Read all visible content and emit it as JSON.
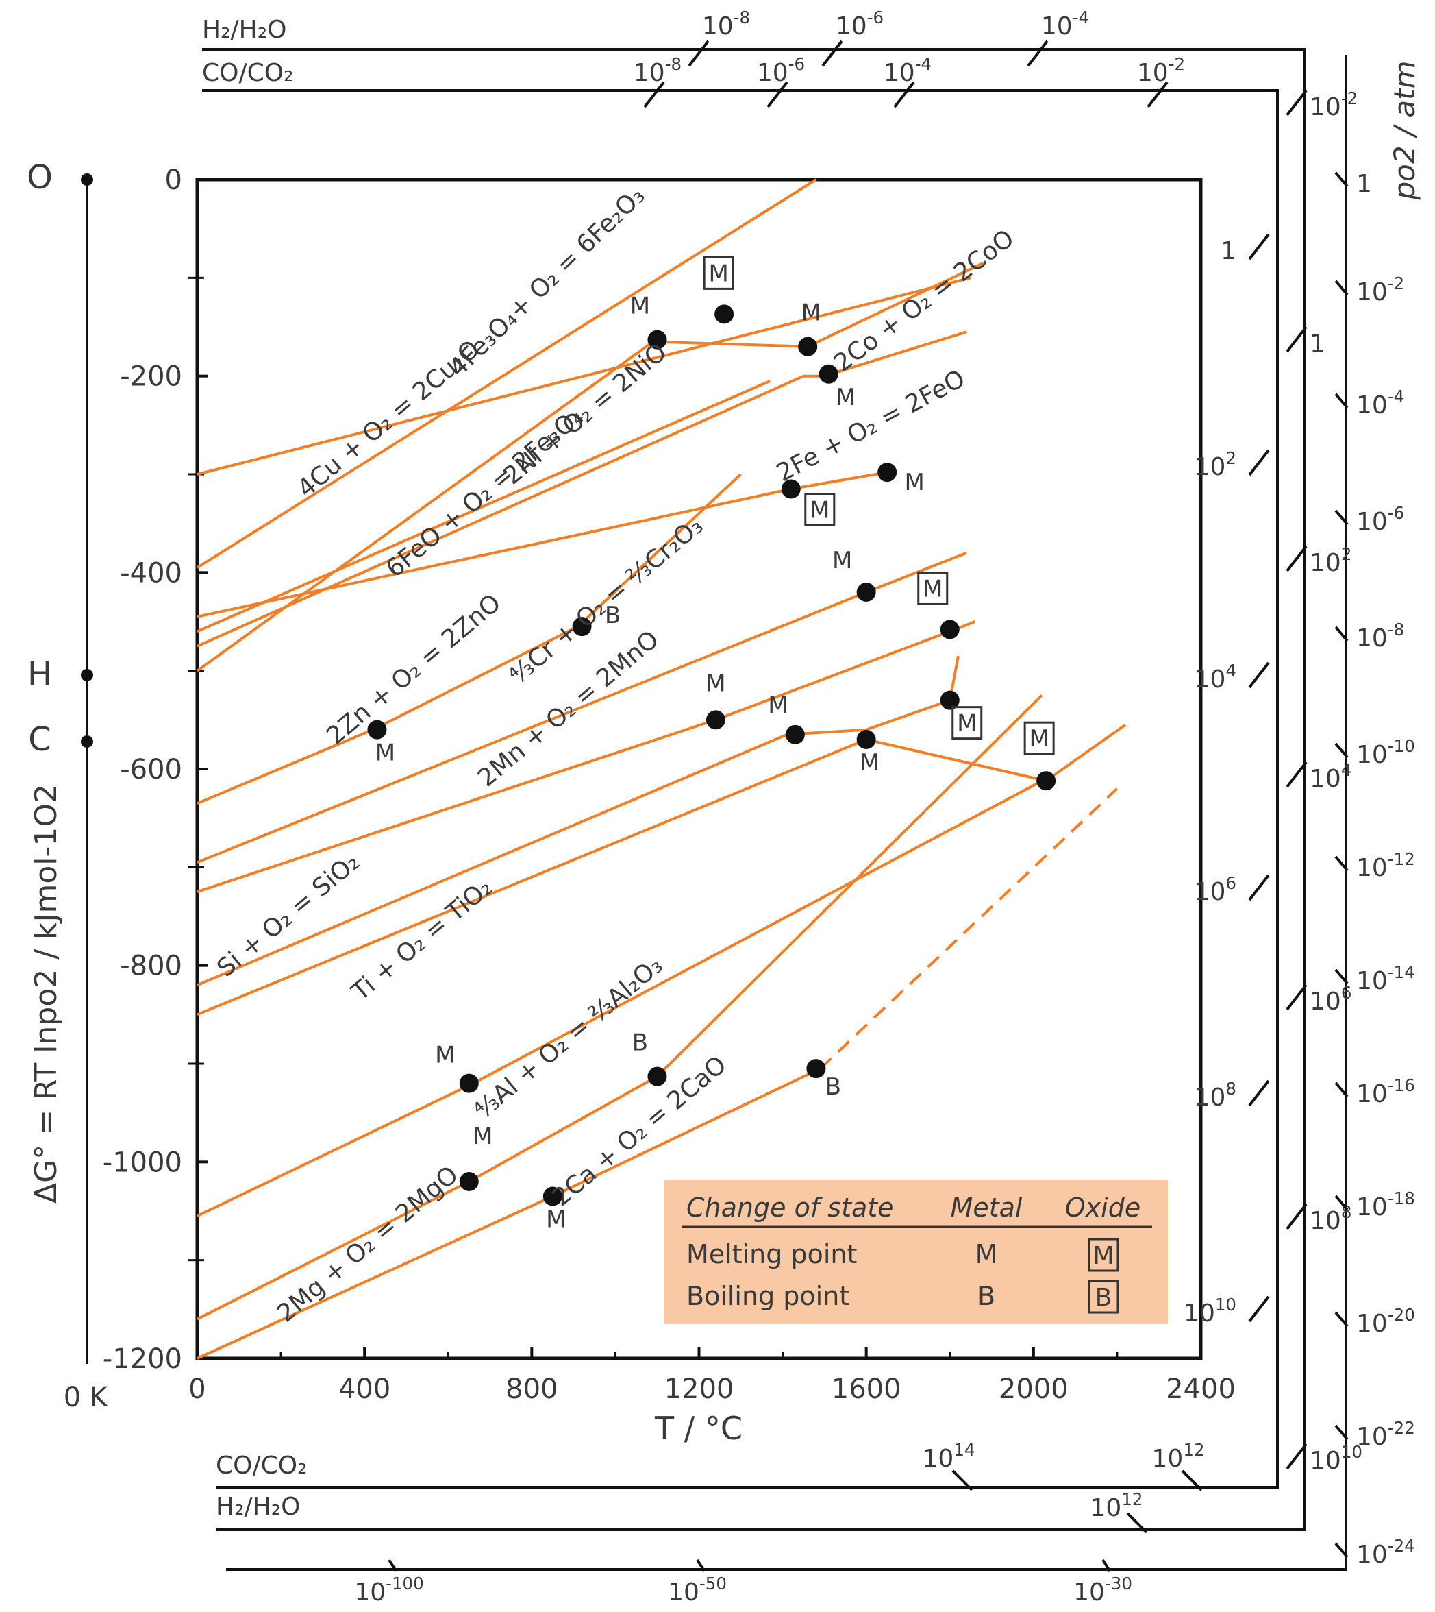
{
  "chart_data": {
    "type": "line",
    "title": "",
    "xlabel": "T / °C",
    "ylabel": "ΔG° = RT lnpo2 / kJmol-1O2",
    "xlim": [
      0,
      2400
    ],
    "ylim": [
      -1200,
      0
    ],
    "x_ticks": [
      "0",
      "400",
      "800",
      "1200",
      "1600",
      "2000",
      "2400"
    ],
    "y_ticks": [
      "0",
      "-200",
      "-400",
      "-600",
      "-800",
      "-1000",
      "-1200"
    ],
    "kelvin_label": "0 K",
    "left_points": [
      "O",
      "H",
      "C"
    ],
    "series": [
      {
        "name": "4Cu + O2 = 2Cu2O",
        "label": "4Cu + O₂ = 2Cu₂O",
        "x": [
          0,
          1850
        ],
        "y": [
          -300,
          -100
        ]
      },
      {
        "name": "4Fe3O4 + O2 = 6Fe2O3",
        "label": "4Fe₃O₄+ O₂ = 6Fe₂O₃",
        "x": [
          0,
          1480
        ],
        "y": [
          -395,
          0
        ]
      },
      {
        "name": "2Co + O2 = 2CoO",
        "label": "2Co + O₂ = 2CoO",
        "x": [
          0,
          1090,
          1460,
          1880
        ],
        "y": [
          -500,
          -165,
          -170,
          -85
        ]
      },
      {
        "name": "2Ni + O2 = 2NiO",
        "label": "2Ni + O₂ = 2NiO",
        "x": [
          0,
          1450,
          1500,
          1840
        ],
        "y": [
          -475,
          -200,
          -200,
          -155
        ]
      },
      {
        "name": "6FeO + O2 = 2Fe3O4",
        "label": "6FeO + O₂ = 2Fe₃O₄",
        "x": [
          0,
          1370
        ],
        "y": [
          -460,
          -205
        ]
      },
      {
        "name": "2Fe + O2 = 2FeO",
        "label": "2Fe + O₂ = 2FeO",
        "x": [
          0,
          1420,
          1650
        ],
        "y": [
          -445,
          -315,
          -298
        ]
      },
      {
        "name": "2Zn + O2 = 2ZnO",
        "label": "2Zn + O₂ = 2ZnO",
        "x": [
          0,
          420,
          910,
          1300
        ],
        "y": [
          -635,
          -560,
          -455,
          -300
        ]
      },
      {
        "name": "4/3Cr + O2 = 2/3Cr2O3",
        "label": "⁴⁄₃Cr + O₂ = ²⁄₃Cr₂O₃",
        "x": [
          0,
          1600,
          1840
        ],
        "y": [
          -695,
          -420,
          -380
        ]
      },
      {
        "name": "2Mn + O2 = 2MnO",
        "label": "2Mn + O₂ = 2MnO",
        "x": [
          0,
          1240,
          1800,
          1860
        ],
        "y": [
          -725,
          -550,
          -460,
          -450
        ]
      },
      {
        "name": "Si + O2 = SiO2",
        "label": "Si + O₂ = SiO₂",
        "x": [
          0,
          1410,
          1600,
          1800,
          1820
        ],
        "y": [
          -820,
          -565,
          -560,
          -530,
          -485
        ]
      },
      {
        "name": "Ti + O2 = TiO2",
        "label": "Ti + O₂ = TiO₂",
        "x": [
          0,
          1600,
          2030,
          2220
        ],
        "y": [
          -850,
          -570,
          -612,
          -555
        ]
      },
      {
        "name": "4/3Al + O2 = 2/3Al2O3",
        "label": "⁴⁄₃Al + O₂ = ²⁄₃Al₂O₃",
        "x": [
          0,
          660,
          2030
        ],
        "y": [
          -1055,
          -920,
          -610
        ]
      },
      {
        "name": "2Mg + O2 = 2MgO",
        "label": "2Mg + O₂ = 2MgO",
        "x": [
          0,
          650,
          1100,
          2020
        ],
        "y": [
          -1160,
          -1020,
          -913,
          -525
        ]
      },
      {
        "name": "2Ca + O2 = 2CaO",
        "label": "2Ca + O₂ = 2CaO",
        "x": [
          0,
          850,
          1490
        ],
        "y": [
          -1200,
          -1035,
          -905
        ]
      },
      {
        "name": "2Ca + O2 = 2CaO (extrapolated)",
        "label": "",
        "x": [
          1490,
          2200
        ],
        "y": [
          -905,
          -620
        ],
        "dashed": true
      }
    ],
    "transition_points": [
      {
        "x": 1100,
        "y": -163,
        "type": "M",
        "box": false
      },
      {
        "x": 1260,
        "y": -137,
        "type": "M",
        "box": true
      },
      {
        "x": 1460,
        "y": -170,
        "type": "M",
        "box": false
      },
      {
        "x": 1510,
        "y": -198,
        "type": "M",
        "box": false
      },
      {
        "x": 1420,
        "y": -315,
        "type": "M",
        "box": true
      },
      {
        "x": 1650,
        "y": -298,
        "type": "M",
        "box": false
      },
      {
        "x": 920,
        "y": -455,
        "type": "B",
        "box": false
      },
      {
        "x": 430,
        "y": -560,
        "type": "M",
        "box": false
      },
      {
        "x": 1600,
        "y": -420,
        "type": "M",
        "box": false
      },
      {
        "x": 1800,
        "y": -458,
        "type": "M",
        "box": true
      },
      {
        "x": 1240,
        "y": -550,
        "type": "M",
        "box": false
      },
      {
        "x": 1430,
        "y": -565,
        "type": "M",
        "box": false
      },
      {
        "x": 1600,
        "y": -570,
        "type": "M",
        "box": false
      },
      {
        "x": 1800,
        "y": -530,
        "type": "M",
        "box": true
      },
      {
        "x": 2030,
        "y": -612,
        "type": "M",
        "box": true
      },
      {
        "x": 650,
        "y": -920,
        "type": "M",
        "box": false
      },
      {
        "x": 1100,
        "y": -913,
        "type": "B",
        "box": false
      },
      {
        "x": 1480,
        "y": -905,
        "type": "B",
        "box": false
      },
      {
        "x": 650,
        "y": -1020,
        "type": "M",
        "box": false
      },
      {
        "x": 850,
        "y": -1035,
        "type": "M",
        "box": false
      }
    ],
    "legend": {
      "position": "bottom-right",
      "headers": [
        "Change of state",
        "Metal",
        "Oxide"
      ],
      "rows": [
        {
          "label": "Melting point",
          "metal": "M",
          "oxide": "M"
        },
        {
          "label": "Boiling point",
          "metal": "B",
          "oxide": "B"
        }
      ]
    },
    "ratio_scales": {
      "top_h2_label": "H₂/H₂O",
      "top_h2_ticks": [
        "10-8",
        "10-6",
        "10-4"
      ],
      "top_co_label": "CO/CO₂",
      "top_co_ticks": [
        "10-8",
        "10-6",
        "10-4",
        "10-2"
      ],
      "bottom_co_label": "CO/CO₂",
      "bottom_co_ticks": [
        "1014",
        "1012"
      ],
      "bottom_h2_label": "H₂/H₂O",
      "bottom_h2_ticks": [
        "1012"
      ],
      "bottom_po2_ticks": [
        "10-100",
        "10-50",
        "10-30"
      ],
      "right_co_ticks": [
        "1",
        "102",
        "104",
        "106",
        "108",
        "1010"
      ],
      "right_h2_ticks": [
        "10-2",
        "1",
        "102",
        "104",
        "106",
        "108",
        "1010"
      ],
      "right_po2_ticks": [
        "1",
        "10-2",
        "10-4",
        "10-6",
        "10-8",
        "10-10",
        "10-12",
        "10-14",
        "10-16",
        "10-18",
        "10-20",
        "10-22",
        "10-24"
      ],
      "po2_axis_label": "po2 / atm"
    }
  }
}
